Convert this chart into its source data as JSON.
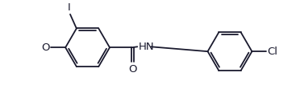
{
  "bg_color": "#ffffff",
  "line_color": "#1a1a2e",
  "lw": 1.3,
  "figsize": [
    3.72,
    1.21
  ],
  "dpi": 100,
  "labels": {
    "I": "I",
    "O_methoxy": "O",
    "HN": "HN",
    "O_carbonyl": "O",
    "Cl": "Cl"
  },
  "fontsize": 9.5
}
